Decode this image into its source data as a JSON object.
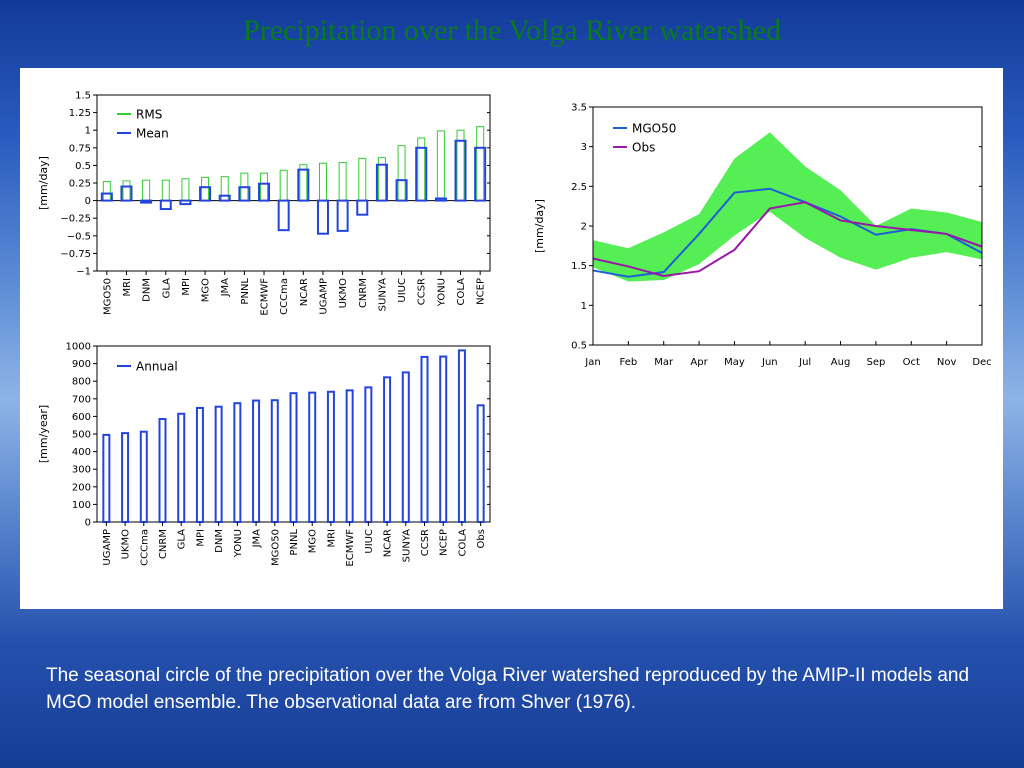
{
  "slide": {
    "title": "Precipitation over the Volga River watershed",
    "caption": "The seasonal circle of the precipitation over the Volga River watershed reproduced by the AMIP-II models and MGO model ensemble. The observational data are from Shver (1976).",
    "title_color": "#0a7a1a"
  },
  "chart_data": [
    {
      "type": "bar",
      "ylabel": "[mm/day]",
      "ylim": [
        -1,
        1.5
      ],
      "yticks": [
        -1,
        -0.75,
        -0.5,
        -0.25,
        0,
        0.25,
        0.5,
        0.75,
        1,
        1.25,
        1.5
      ],
      "ytick_labels": [
        "−1",
        "−0.75",
        "−0.5",
        "−0.25",
        "0",
        "0.25",
        "0.5",
        "0.75",
        "1",
        "1.25",
        "1.5"
      ],
      "legend_position": "top-left",
      "categories": [
        "MGO50",
        "MRI",
        "DNM",
        "GLA",
        "MPI",
        "MGO",
        "JMA",
        "PNNL",
        "ECMWF",
        "CCCma",
        "NCAR",
        "UGAMP",
        "UKMO",
        "CNRM",
        "SUNYA",
        "UIUC",
        "CCSR",
        "YONU",
        "COLA",
        "NCEP"
      ],
      "series": [
        {
          "name": "RMS",
          "color": "#33cc33",
          "values": [
            0.27,
            0.28,
            0.29,
            0.29,
            0.31,
            0.33,
            0.34,
            0.39,
            0.39,
            0.43,
            0.51,
            0.53,
            0.54,
            0.6,
            0.61,
            0.78,
            0.89,
            0.99,
            1.0,
            1.05
          ]
        },
        {
          "name": "Mean",
          "color": "#2244dd",
          "values": [
            0.1,
            0.2,
            -0.02,
            -0.12,
            -0.05,
            0.19,
            0.07,
            0.19,
            0.24,
            -0.42,
            0.44,
            -0.47,
            -0.43,
            -0.2,
            0.51,
            0.29,
            0.75,
            0.03,
            0.85,
            0.75
          ]
        }
      ]
    },
    {
      "type": "bar",
      "ylabel": "[mm/year]",
      "ylim": [
        0,
        1000
      ],
      "yticks": [
        0,
        100,
        200,
        300,
        400,
        500,
        600,
        700,
        800,
        900,
        1000
      ],
      "ytick_labels": [
        "0",
        "100",
        "200",
        "300",
        "400",
        "500",
        "600",
        "700",
        "800",
        "900",
        "1000"
      ],
      "legend_position": "top-left",
      "categories": [
        "UGAMP",
        "UKMO",
        "CCCma",
        "CNRM",
        "GLA",
        "MPI",
        "DNM",
        "YONU",
        "JMA",
        "MGO50",
        "PNNL",
        "MGO",
        "MRI",
        "ECMWF",
        "UIUC",
        "NCAR",
        "SUNYA",
        "CCSR",
        "NCEP",
        "COLA",
        "Obs"
      ],
      "series": [
        {
          "name": "Annual",
          "color": "#2244dd",
          "values": [
            495,
            505,
            513,
            585,
            615,
            648,
            655,
            675,
            690,
            692,
            732,
            735,
            740,
            748,
            765,
            822,
            850,
            938,
            940,
            975,
            663
          ]
        }
      ]
    },
    {
      "type": "line",
      "ylabel": "[mm/day]",
      "ylim": [
        0.5,
        3.5
      ],
      "yticks": [
        0.5,
        1,
        1.5,
        2,
        2.5,
        3,
        3.5
      ],
      "ytick_labels": [
        "0.5",
        "1",
        "1.5",
        "2",
        "2.5",
        "3",
        "3.5"
      ],
      "legend_position": "top-left",
      "categories": [
        "Jan",
        "Feb",
        "Mar",
        "Apr",
        "May",
        "Jun",
        "Jul",
        "Aug",
        "Sep",
        "Oct",
        "Nov",
        "Dec"
      ],
      "band": {
        "color": "#55ee55",
        "upper": [
          1.82,
          1.72,
          1.92,
          2.15,
          2.85,
          3.18,
          2.75,
          2.45,
          2.0,
          2.22,
          2.17,
          2.05
        ],
        "lower": [
          1.48,
          1.3,
          1.32,
          1.52,
          1.88,
          2.18,
          1.85,
          1.6,
          1.45,
          1.6,
          1.67,
          1.58
        ]
      },
      "series": [
        {
          "name": "MGO50",
          "color": "#1f5fd6",
          "values": [
            1.44,
            1.36,
            1.42,
            1.9,
            2.42,
            2.47,
            2.3,
            2.12,
            1.89,
            1.96,
            1.9,
            1.66
          ]
        },
        {
          "name": "Obs",
          "color": "#9a17a8",
          "values": [
            1.59,
            1.49,
            1.37,
            1.43,
            1.7,
            2.22,
            2.3,
            2.07,
            2.0,
            1.95,
            1.9,
            1.74
          ]
        }
      ]
    }
  ]
}
